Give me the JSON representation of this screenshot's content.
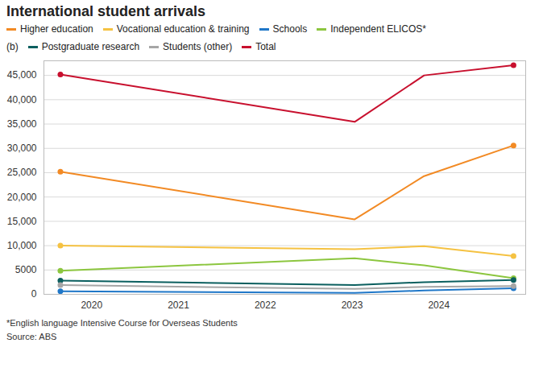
{
  "chart_data": {
    "type": "line",
    "title": "International student arrivals",
    "legend_label": "(b)",
    "notes": [
      "*English language Intensive Course for Overseas Students",
      "Source: ABS"
    ],
    "x": [
      2019.64,
      2023.03,
      2023.83,
      2024.86
    ],
    "xlim": [
      2019.45,
      2025.0
    ],
    "xticks": [
      2020,
      2021,
      2022,
      2023,
      2024
    ],
    "ylim": [
      0,
      48000
    ],
    "yticks": [
      0,
      5000,
      {
        "value": 10000,
        "label": "10,000"
      },
      {
        "value": 15000,
        "label": "15,000"
      },
      {
        "value": 20000,
        "label": "20,000"
      },
      {
        "value": 25000,
        "label": "25,000"
      },
      {
        "value": 30000,
        "label": "30,000"
      },
      {
        "value": 35000,
        "label": "35,000"
      },
      {
        "value": 40000,
        "label": "40,000"
      },
      {
        "value": 45000,
        "label": "45,000"
      }
    ],
    "grid": true,
    "marker": "endpoints",
    "series": [
      {
        "name": "Higher education",
        "color": "#f28a24",
        "values": [
          25200,
          15400,
          24300,
          30600
        ]
      },
      {
        "name": "Vocational education & training",
        "color": "#f5c242",
        "values": [
          10000,
          9250,
          9900,
          7850
        ]
      },
      {
        "name": "Schools",
        "color": "#1f77c8",
        "values": [
          630,
          310,
          780,
          1250
        ]
      },
      {
        "name": "Independent ELICOS*",
        "color": "#8cc63f",
        "values": [
          4850,
          7400,
          5950,
          3300
        ]
      },
      {
        "name": "Postgraduate research",
        "color": "#0b5f5f",
        "values": [
          2800,
          1900,
          2500,
          2950
        ]
      },
      {
        "name": "Students (other)",
        "color": "#a6a6a6",
        "values": [
          1900,
          1100,
          1550,
          1700
        ]
      },
      {
        "name": "Total",
        "color": "#c8102e",
        "values": [
          45200,
          35450,
          45000,
          47100
        ]
      }
    ]
  }
}
